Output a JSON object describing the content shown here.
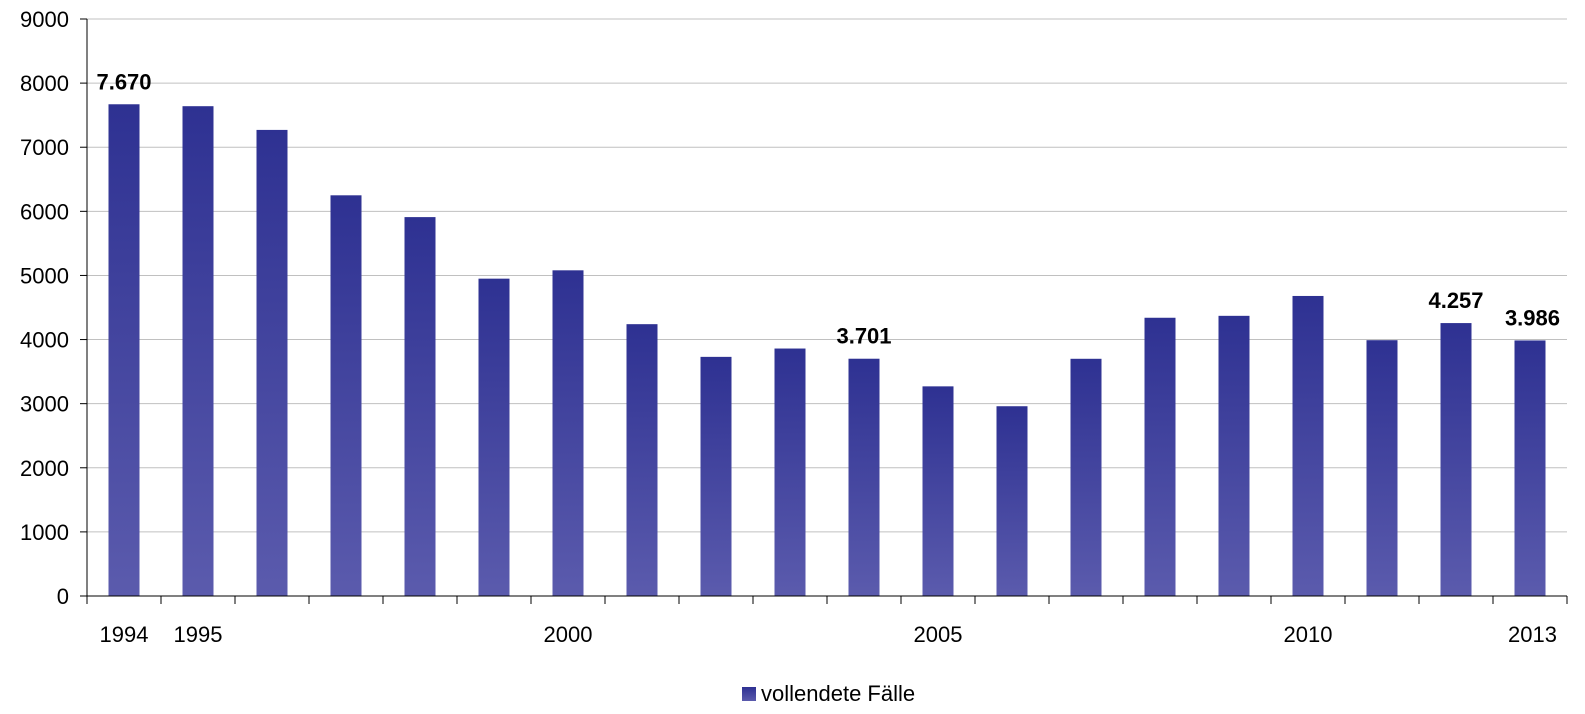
{
  "chart_data": {
    "type": "bar",
    "title": "",
    "xlabel": "",
    "ylabel": "",
    "categories": [
      "1994",
      "1995",
      "1996",
      "1997",
      "1998",
      "1999",
      "2000",
      "2001",
      "2002",
      "2003",
      "2004",
      "2005",
      "2006",
      "2007",
      "2008",
      "2009",
      "2010",
      "2011",
      "2012",
      "2013"
    ],
    "x_tick_labels": [
      "1994",
      "1995",
      "",
      "",
      "",
      "",
      "2000",
      "",
      "",
      "",
      "",
      "2005",
      "",
      "",
      "",
      "",
      "2010",
      "",
      "",
      "2013"
    ],
    "series": [
      {
        "name": "vollendete Fälle",
        "values": [
          7670,
          7640,
          7270,
          6250,
          5910,
          4950,
          5080,
          4240,
          3730,
          3860,
          3701,
          3270,
          2960,
          3700,
          4340,
          4370,
          4680,
          3990,
          4257,
          3986
        ]
      }
    ],
    "data_labels": [
      {
        "category": "1994",
        "text": "7.670"
      },
      {
        "category": "2004",
        "text": "3.701"
      },
      {
        "category": "2012",
        "text": "4.257"
      },
      {
        "category": "2013",
        "text": "3.986"
      }
    ],
    "ylim": [
      0,
      9000
    ],
    "y_ticks": [
      0,
      1000,
      2000,
      3000,
      4000,
      5000,
      6000,
      7000,
      8000,
      9000
    ],
    "grid": true,
    "legend_position": "bottom-center",
    "colors": {
      "bar_top": "#2E3192",
      "bar_bottom": "#5B5BAD",
      "grid": "#C0C0C0",
      "axis": "#000000"
    }
  }
}
